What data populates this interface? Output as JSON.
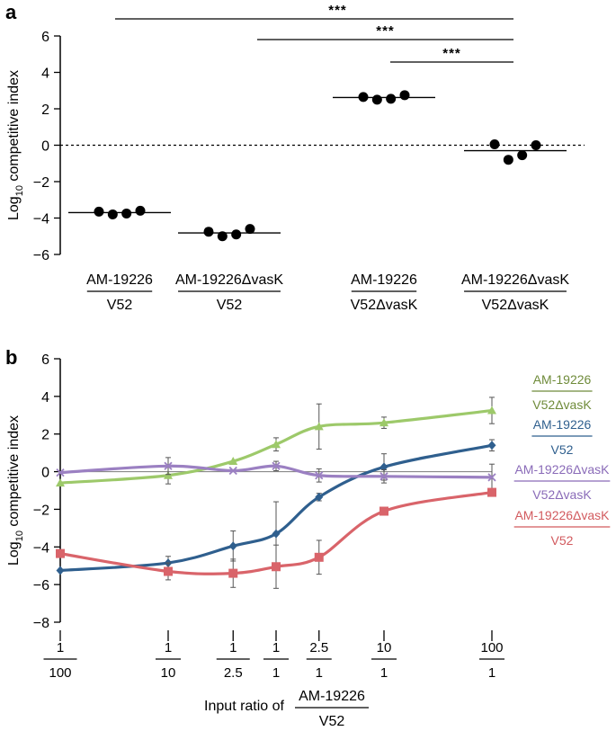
{
  "chart_data": [
    {
      "panel": "a",
      "type": "scatter",
      "ylabel_main": "Log",
      "ylabel_sub": "10",
      "ylabel_rest": " competitive index",
      "ylim": [
        -6,
        6
      ],
      "yticks": [
        {
          "v": 6,
          "label": "6"
        },
        {
          "v": 4,
          "label": "4"
        },
        {
          "v": 2,
          "label": "2"
        },
        {
          "v": 0,
          "label": "0"
        },
        {
          "v": -2,
          "label": "−2"
        },
        {
          "v": -4,
          "label": "−4"
        },
        {
          "v": -6,
          "label": "−6"
        }
      ],
      "reference_line": 0,
      "groups": [
        {
          "numerator": "AM-19226",
          "denominator": "V52",
          "points": [
            -3.65,
            -3.8,
            -3.75,
            -3.6
          ],
          "median": -3.7
        },
        {
          "numerator": "AM-19226ΔvasK",
          "denominator": "V52",
          "points": [
            -4.75,
            -5.0,
            -4.9,
            -4.6
          ],
          "median": -4.82
        },
        {
          "numerator": "AM-19226",
          "denominator": "V52ΔvasK",
          "points": [
            2.65,
            2.5,
            2.55,
            2.75
          ],
          "median": 2.62
        },
        {
          "numerator": "AM-19226ΔvasK",
          "denominator": "V52ΔvasK",
          "points": [
            0.05,
            -0.8,
            -0.55,
            0.0
          ],
          "median": -0.3
        }
      ],
      "significance": [
        {
          "from": 0,
          "to": 3,
          "label": "***"
        },
        {
          "from": 1,
          "to": 3,
          "label": "***"
        },
        {
          "from": 2,
          "to": 3,
          "label": "***"
        }
      ]
    },
    {
      "panel": "b",
      "type": "line",
      "ylabel_main": "Log",
      "ylabel_sub": "10",
      "ylabel_rest": " competitive index",
      "ylim": [
        -8,
        6
      ],
      "yticks": [
        {
          "v": 6,
          "label": "6"
        },
        {
          "v": 4,
          "label": "4"
        },
        {
          "v": 2,
          "label": "2"
        },
        {
          "v": 0,
          "label": "0"
        },
        {
          "v": -2,
          "label": "−2"
        },
        {
          "v": -4,
          "label": "−4"
        },
        {
          "v": -6,
          "label": "−6"
        },
        {
          "v": -8,
          "label": "−8"
        }
      ],
      "x_ratios": [
        0.01,
        0.1,
        0.4,
        1,
        2.5,
        10,
        100
      ],
      "x_tick_labels": [
        {
          "num": "1",
          "den": "100"
        },
        {
          "num": "1",
          "den": "10"
        },
        {
          "num": "1",
          "den": "2.5"
        },
        {
          "num": "1",
          "den": "1"
        },
        {
          "num": "2.5",
          "den": "1"
        },
        {
          "num": "10",
          "den": "1"
        },
        {
          "num": "100",
          "den": "1"
        }
      ],
      "xlabel_prefix": "Input ratio of",
      "xlabel_num": "AM-19226",
      "xlabel_den": "V52",
      "series": [
        {
          "name_num": "AM-19226",
          "name_den": "V52ΔvasK",
          "color": "#9dc96a",
          "label_color": "#6f8b3a",
          "marker": "triangle",
          "values": [
            -0.6,
            -0.2,
            0.55,
            1.45,
            2.4,
            2.6,
            3.25
          ],
          "errors": [
            0.0,
            0.45,
            0.0,
            0.35,
            1.2,
            0.3,
            0.7
          ]
        },
        {
          "name_num": "AM-19226",
          "name_den": "V52",
          "color": "#2f5f8e",
          "label_color": "#2f5f8e",
          "marker": "diamond",
          "values": [
            -5.25,
            -4.85,
            -3.95,
            -3.3,
            -1.35,
            0.25,
            1.4
          ],
          "errors": [
            0.0,
            0.35,
            0.8,
            1.7,
            0.2,
            0.7,
            0.3
          ]
        },
        {
          "name_num": "AM-19226ΔvasK",
          "name_den": "V52ΔvasK",
          "color": "#9b80c2",
          "label_color": "#8a6bb8",
          "marker": "x",
          "values": [
            -0.05,
            0.3,
            0.05,
            0.3,
            -0.2,
            -0.25,
            -0.3
          ],
          "errors": [
            0.0,
            0.45,
            0.0,
            0.25,
            0.35,
            0.35,
            0.7
          ]
        },
        {
          "name_num": "AM-19226ΔvasK",
          "name_den": "V52",
          "color": "#d9646a",
          "label_color": "#d25a5e",
          "marker": "square",
          "values": [
            -4.35,
            -5.3,
            -5.4,
            -5.05,
            -4.55,
            -2.1,
            -1.1
          ],
          "errors": [
            0.0,
            0.45,
            0.75,
            1.15,
            0.9,
            0.0,
            0.0
          ]
        }
      ]
    }
  ]
}
